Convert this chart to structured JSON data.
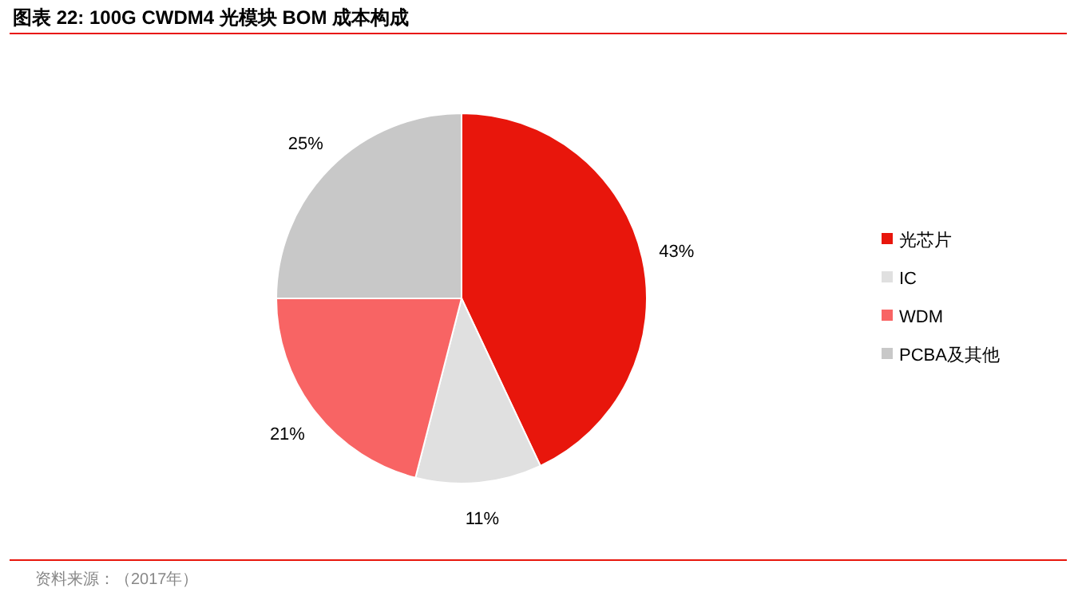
{
  "chart_data": {
    "type": "pie",
    "title": "图表 22: 100G CWDM4 光模块 BOM 成本构成",
    "categories": [
      "光芯片",
      "IC",
      "WDM",
      "PCBA及其他"
    ],
    "values": [
      43,
      11,
      21,
      25
    ],
    "colors": [
      "#e8160c",
      "#e0e0e0",
      "#f86464",
      "#c8c8c8"
    ],
    "value_labels": [
      "43%",
      "11%",
      "21%",
      "25%"
    ],
    "legend": "right",
    "annotations": [
      "资料来源：（2017年）"
    ]
  }
}
